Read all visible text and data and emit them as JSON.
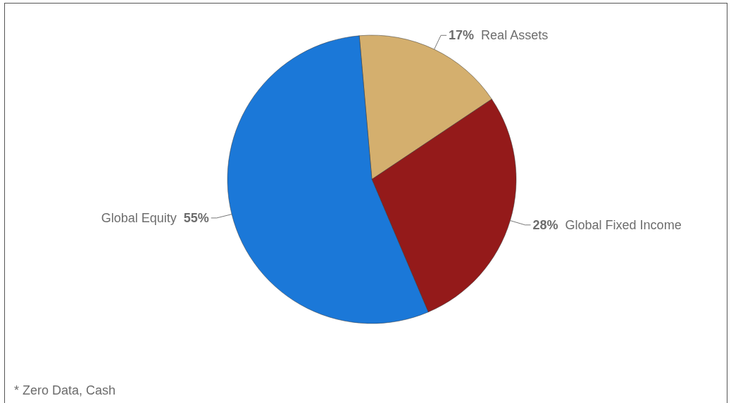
{
  "chart_data": {
    "type": "pie",
    "categories": [
      "Real Assets",
      "Global Fixed Income",
      "Global Equity"
    ],
    "values": [
      17,
      28,
      55
    ],
    "colors": [
      "#d4af6e",
      "#941a1a",
      "#1b78d8"
    ],
    "value_labels": [
      "17%",
      "28%",
      "55%"
    ],
    "annotations": [
      "* Zero Data, Cash"
    ]
  }
}
